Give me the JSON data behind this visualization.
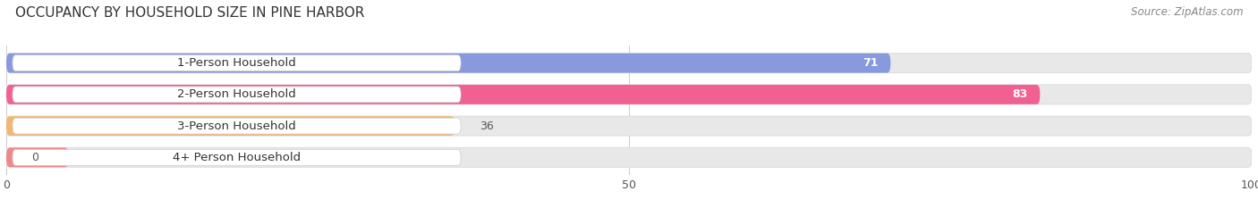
{
  "title": "OCCUPANCY BY HOUSEHOLD SIZE IN PINE HARBOR",
  "source": "Source: ZipAtlas.com",
  "categories": [
    "1-Person Household",
    "2-Person Household",
    "3-Person Household",
    "4+ Person Household"
  ],
  "values": [
    71,
    83,
    36,
    0
  ],
  "bar_colors": [
    "#8899dd",
    "#f06090",
    "#f0b870",
    "#f08888"
  ],
  "bar_bg_color": "#e8e8e8",
  "xlim": [
    0,
    100
  ],
  "xticks": [
    0,
    50,
    100
  ],
  "bar_height": 0.62,
  "figsize": [
    14.06,
    2.33
  ],
  "background_color": "#ffffff",
  "title_fontsize": 11,
  "source_fontsize": 8.5,
  "bar_label_fontsize": 9,
  "axis_label_fontsize": 9,
  "category_fontsize": 9.5
}
